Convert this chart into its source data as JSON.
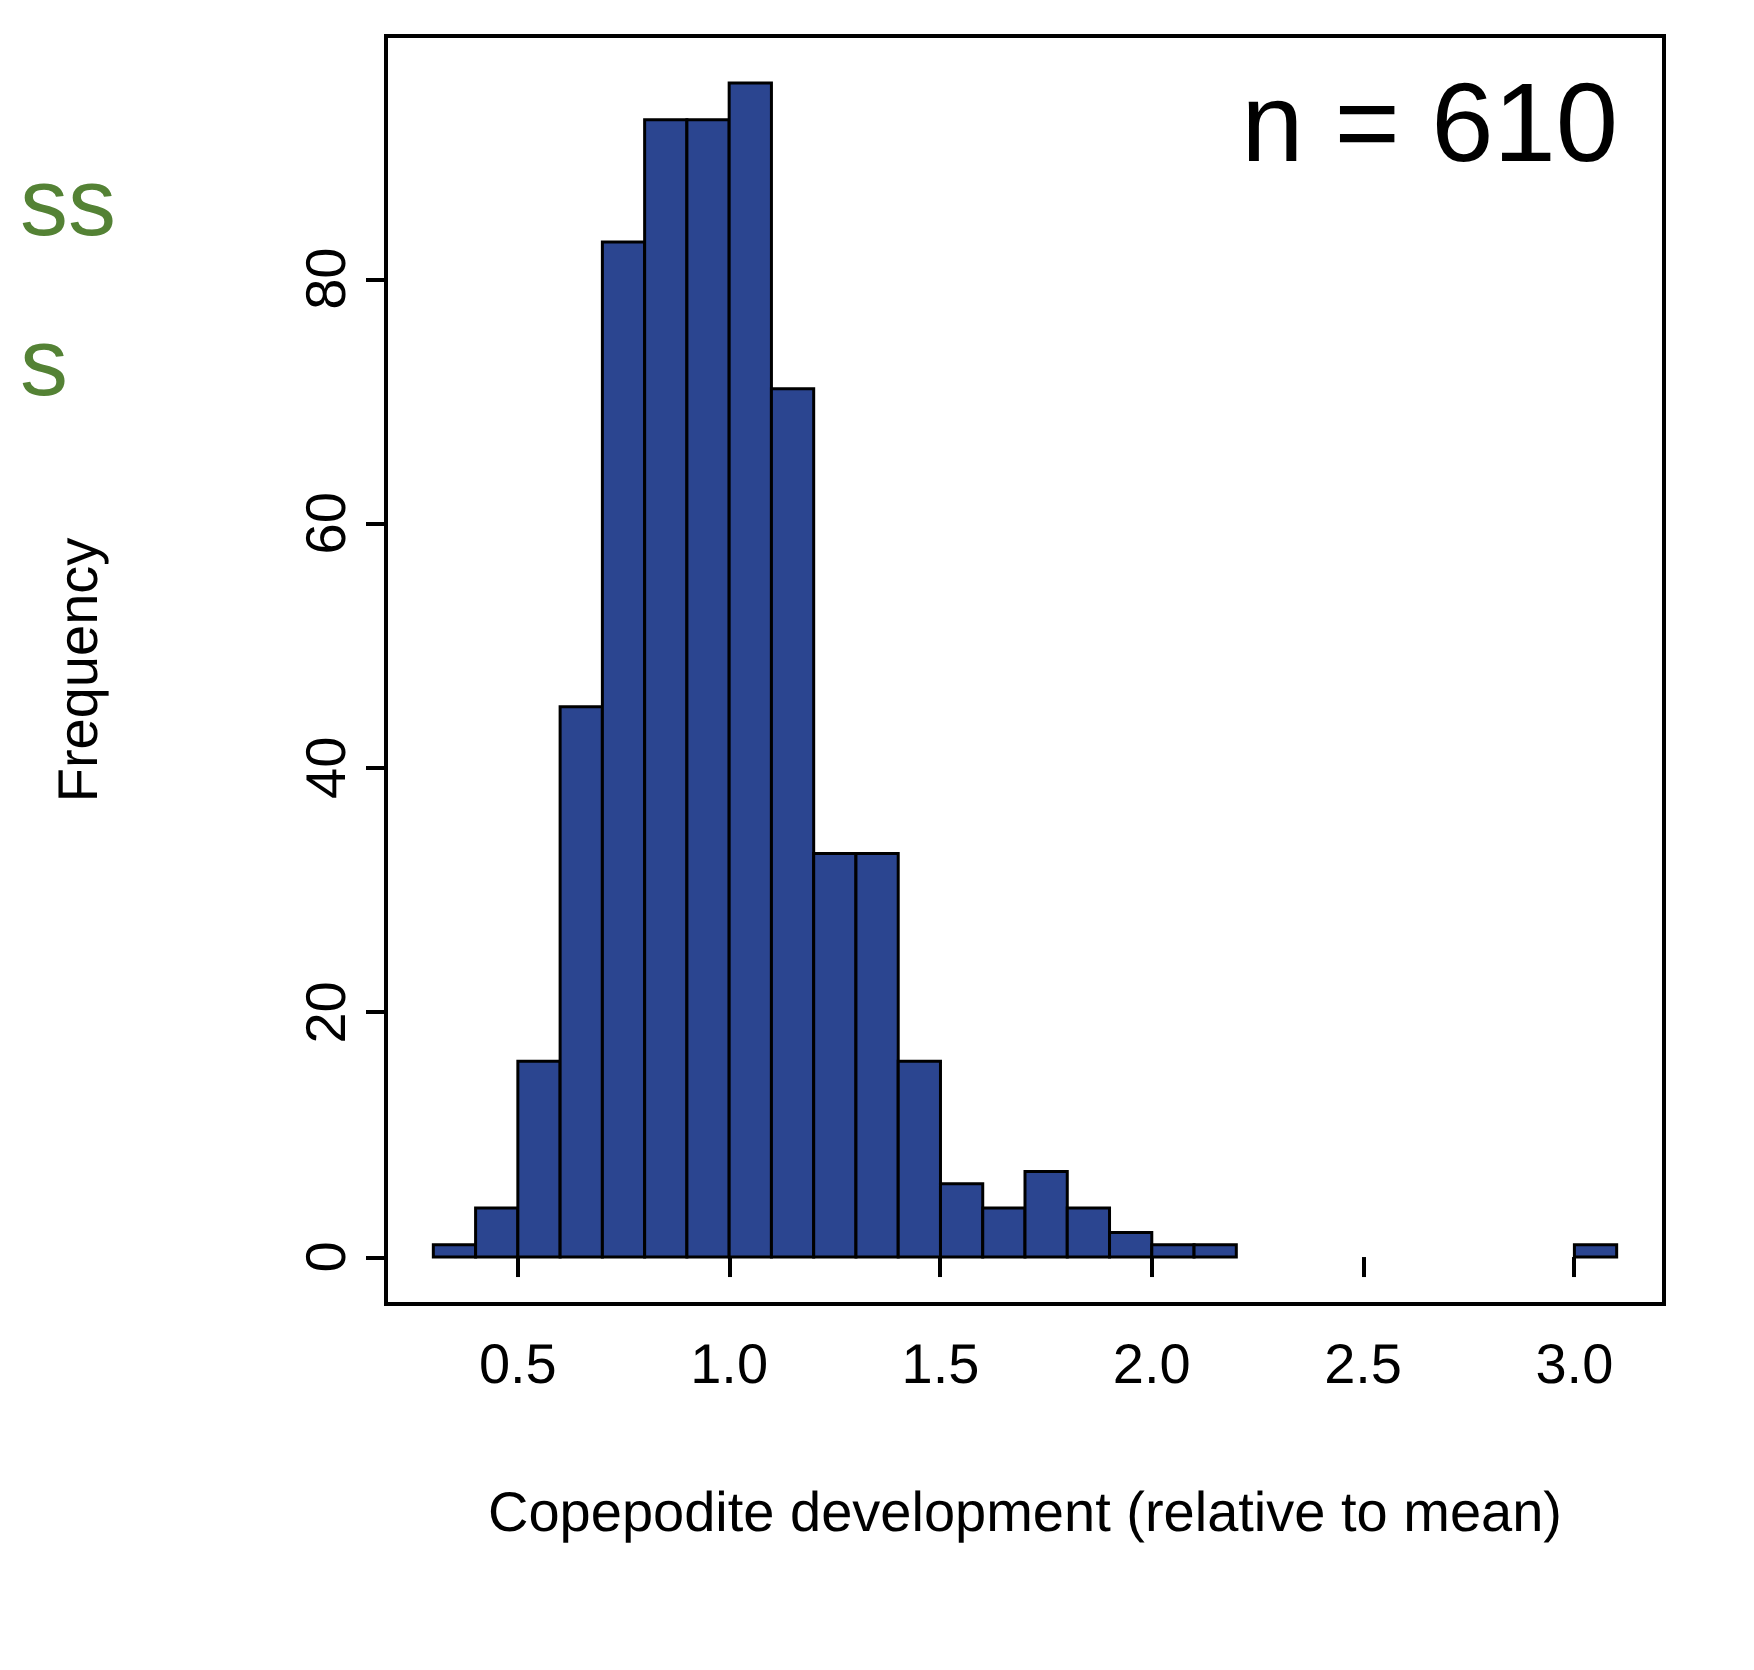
{
  "chart_data": {
    "type": "histogram",
    "xlabel": "Copepodite development (relative to mean)",
    "ylabel": "Frequency",
    "bins": [
      0.3,
      0.4,
      0.5,
      0.6,
      0.7,
      0.8,
      0.9,
      1.0,
      1.1,
      1.2,
      1.3,
      1.4,
      1.5,
      1.6,
      1.7,
      1.8,
      1.9,
      2.0,
      2.1,
      2.2,
      2.3,
      2.4,
      2.5,
      2.6,
      2.7,
      2.8,
      2.9,
      3.0,
      3.1
    ],
    "values": [
      1,
      4,
      16,
      45,
      83,
      93,
      93,
      96,
      71,
      33,
      33,
      16,
      6,
      4,
      7,
      4,
      2,
      1,
      1,
      0,
      0,
      0,
      0,
      0,
      0,
      0,
      0,
      1
    ],
    "color": "#2b4590",
    "xlim": [
      0.188,
      3.212
    ],
    "xticks": [
      {
        "value": 0.5,
        "label": "0.5"
      },
      {
        "value": 1,
        "label": "1.0"
      },
      {
        "value": 1.5,
        "label": "1.5"
      },
      {
        "value": 2,
        "label": "2.0"
      },
      {
        "value": 2.5,
        "label": "2.5"
      },
      {
        "value": 3,
        "label": "3.0"
      }
    ],
    "ylim": [
      -3.84,
      99.84
    ],
    "yticks": [
      0,
      20,
      40,
      60,
      80
    ],
    "grid": false,
    "annotations": [
      "n = 610",
      "ss",
      "s"
    ]
  }
}
